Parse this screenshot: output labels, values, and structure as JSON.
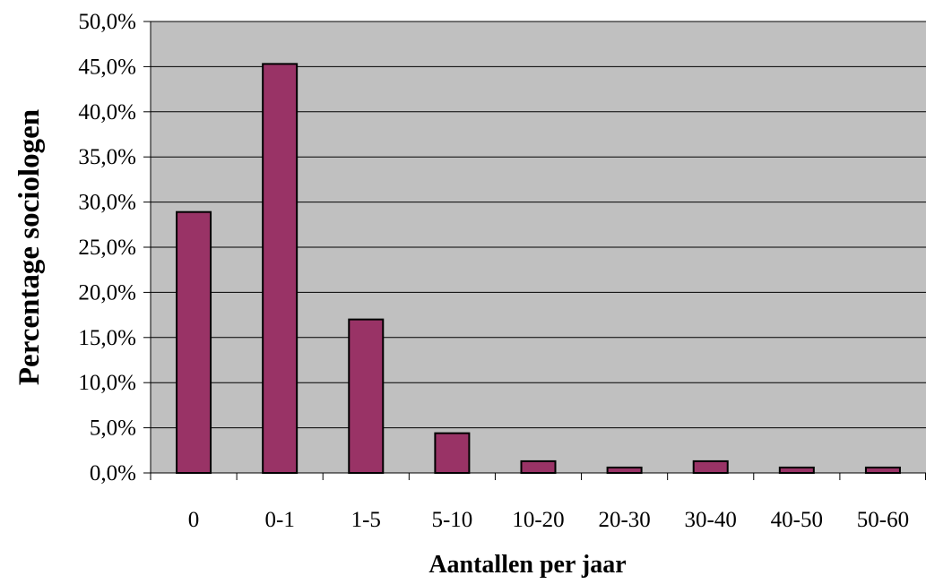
{
  "chart_data": {
    "type": "bar",
    "title": "",
    "xlabel": "Aantallen per jaar",
    "ylabel": "Percentage sociologen",
    "categories": [
      "0",
      "0-1",
      "1-5",
      "5-10",
      "10-20",
      "20-30",
      "30-40",
      "40-50",
      "50-60"
    ],
    "values": [
      28.9,
      45.3,
      17.0,
      4.4,
      1.3,
      0.6,
      1.3,
      0.6,
      0.6
    ],
    "ylim": [
      0,
      50
    ],
    "yticks": [
      "0,0%",
      "5,0%",
      "10,0%",
      "15,0%",
      "20,0%",
      "25,0%",
      "30,0%",
      "35,0%",
      "40,0%",
      "45,0%",
      "50,0%"
    ],
    "grid": true,
    "legend": "none",
    "colors": {
      "plot_background": "#c0c0c0",
      "bar_fill": "#993366",
      "bar_stroke": "#000000",
      "gridline": "#000000"
    }
  }
}
